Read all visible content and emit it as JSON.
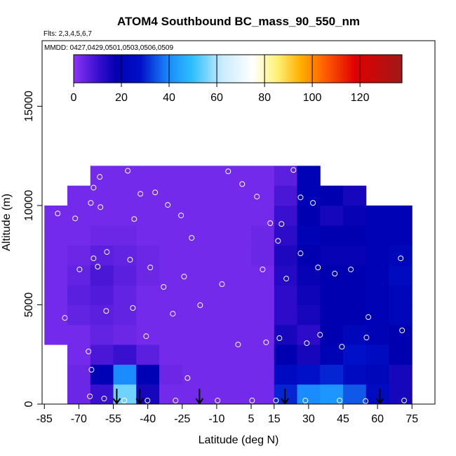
{
  "chart_data": {
    "type": "heatmap",
    "title": "ATOM4 Southbound BC_mass_90_550_nm",
    "subtitle": "Flts: 2,3,4,5,6,7",
    "annotation": "MMDD: 0427,0429,0501,0503,0506,0509",
    "x_label": "Latitude (deg N)",
    "y_label": "Altitude (m)",
    "xlim": [
      -86,
      85
    ],
    "ylim": [
      0,
      18300
    ],
    "xticks": [
      -85,
      -70,
      -55,
      -40,
      -25,
      -10,
      5,
      15,
      30,
      45,
      60,
      75
    ],
    "yticks": [
      0,
      5000,
      10000,
      15000
    ],
    "clim": [
      0,
      137.6
    ],
    "cticks": [
      0,
      20,
      40,
      60,
      80,
      100,
      120
    ],
    "colorscale": [
      [
        0,
        "#8b35f5"
      ],
      [
        10,
        "#3a10d0"
      ],
      [
        18,
        "#0000b0"
      ],
      [
        28,
        "#0010c8"
      ],
      [
        40,
        "#1a8cff"
      ],
      [
        50,
        "#30c0ff"
      ],
      [
        62,
        "#c8eaff"
      ],
      [
        75,
        "#ffffff"
      ],
      [
        85,
        "#fff27a"
      ],
      [
        95,
        "#ffb000"
      ],
      [
        105,
        "#ff6000"
      ],
      [
        118,
        "#e00000"
      ],
      [
        137.6,
        "#a01818"
      ]
    ],
    "x": [
      -80,
      -70,
      -60,
      -50,
      -40,
      -30,
      -20,
      -10,
      0,
      10,
      20,
      30,
      40,
      50,
      60,
      70
    ],
    "y": [
      500,
      1500,
      2500,
      3500,
      4500,
      5500,
      6500,
      7500,
      8500,
      9500,
      10500,
      11500
    ],
    "z": [
      [
        null,
        4,
        10,
        55,
        15,
        3,
        3,
        3,
        3,
        3,
        30,
        40,
        42,
        35,
        25,
        15
      ],
      [
        null,
        4,
        20,
        40,
        20,
        4,
        3,
        3,
        3,
        3,
        25,
        28,
        30,
        25,
        22,
        15
      ],
      [
        null,
        3,
        8,
        10,
        6,
        3,
        3,
        3,
        3,
        3,
        18,
        15,
        20,
        28,
        25,
        18
      ],
      [
        3,
        3,
        5,
        4,
        3,
        3,
        3,
        3,
        3,
        3,
        15,
        12,
        18,
        22,
        20,
        18
      ],
      [
        3,
        5,
        6,
        5,
        3,
        3,
        3,
        3,
        3,
        3,
        12,
        15,
        18,
        18,
        20,
        22
      ],
      [
        3,
        6,
        7,
        5,
        3,
        3,
        3,
        3,
        3,
        3,
        12,
        16,
        18,
        18,
        20,
        22
      ],
      [
        3,
        5,
        8,
        6,
        4,
        3,
        3,
        3,
        3,
        3,
        13,
        17,
        18,
        18,
        20,
        24
      ],
      [
        3,
        4,
        6,
        5,
        4,
        3,
        3,
        3,
        3,
        4,
        14,
        18,
        17,
        17,
        20,
        22
      ],
      [
        3,
        3,
        4,
        4,
        3,
        3,
        3,
        3,
        3,
        4,
        12,
        20,
        18,
        18,
        20,
        20
      ],
      [
        3,
        3,
        3,
        3,
        3,
        3,
        3,
        3,
        3,
        3,
        10,
        18,
        15,
        17,
        20,
        20
      ],
      [
        null,
        3,
        3,
        3,
        3,
        3,
        3,
        3,
        3,
        3,
        8,
        20,
        18,
        15,
        null,
        null
      ],
      [
        null,
        null,
        3,
        3,
        3,
        3,
        3,
        3,
        3,
        3,
        6,
        20,
        null,
        null,
        null,
        null
      ]
    ],
    "samples": {
      "color": "#ffffff",
      "x": [
        -79.2,
        -71.6,
        -63.6,
        -64.8,
        -60.9,
        -60.6,
        -48.7,
        -43.2,
        -36.8,
        -31.3,
        -25.5,
        -45.9,
        -20.9,
        -5,
        1.1,
        7.5,
        13.3,
        18.2,
        16.7,
        23.4,
        26.5,
        31.9,
        -57.8,
        -63.6,
        -69.7,
        -61.8,
        -47.7,
        -38.9,
        -24.2,
        -33.1,
        -7.7,
        10,
        20.3,
        26.5,
        34.1,
        41.4,
        48.4,
        70.1,
        -76.1,
        -58.1,
        -46.5,
        -29.1,
        -17.2,
        -0.7,
        11.5,
        17.3,
        29.2,
        35,
        44.5,
        55.2,
        56,
        70.7,
        -65.8,
        -64.5,
        -40.7,
        -22.7,
        -65.2,
        -59,
        -50.2,
        -40.1,
        -27.9,
        -9.6,
        5.4,
        15.8,
        28.6,
        43.5,
        54.8,
        71.6
      ],
      "y": [
        9600,
        9350,
        10900,
        10130,
        11440,
        9920,
        11750,
        10590,
        10660,
        10030,
        9500,
        9320,
        8370,
        11720,
        11080,
        10450,
        9110,
        9070,
        8220,
        11790,
        10410,
        10130,
        7660,
        7340,
        6780,
        6920,
        7270,
        6880,
        6420,
        5900,
        6040,
        6780,
        6320,
        7590,
        6880,
        6570,
        6780,
        7340,
        4340,
        4690,
        4840,
        4550,
        4980,
        3000,
        3110,
        3320,
        3070,
        3490,
        2890,
        3350,
        4380,
        3710,
        2650,
        1730,
        3420,
        1310,
        390,
        280,
        180,
        180,
        180,
        180,
        180,
        180,
        180,
        180,
        150,
        180
      ]
    },
    "flight_markers": [
      -53.5,
      -43.5,
      -17.5,
      19.7,
      61
    ]
  }
}
